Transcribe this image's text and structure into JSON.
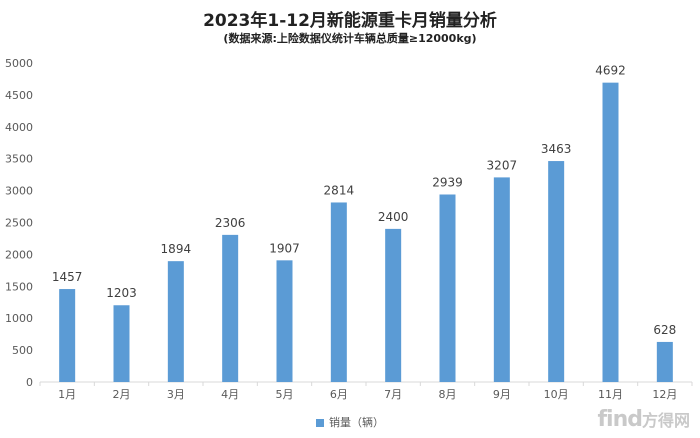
{
  "chart_data": {
    "type": "bar",
    "title": "2023年1-12月新能源重卡月销量分析",
    "subtitle": "(数据来源:上险数据仪统计车辆总质量≥12000kg)",
    "categories": [
      "1月",
      "2月",
      "3月",
      "4月",
      "5月",
      "6月",
      "7月",
      "8月",
      "9月",
      "10月",
      "11月",
      "12月"
    ],
    "series": [
      {
        "name": "销量（辆）",
        "values": [
          1457,
          1203,
          1894,
          2306,
          1907,
          2814,
          2400,
          2939,
          3207,
          3463,
          4692,
          628
        ]
      }
    ],
    "ylim": [
      0,
      5000
    ],
    "yticks": [
      "0",
      "500",
      "1000",
      "1500",
      "2000",
      "2500",
      "3000",
      "3500",
      "4000",
      "4500",
      "5000"
    ],
    "grid": false,
    "legend_position": "bottom",
    "color": "#5b9bd5"
  },
  "watermark": {
    "latin": "find",
    "cn": "方得网"
  }
}
